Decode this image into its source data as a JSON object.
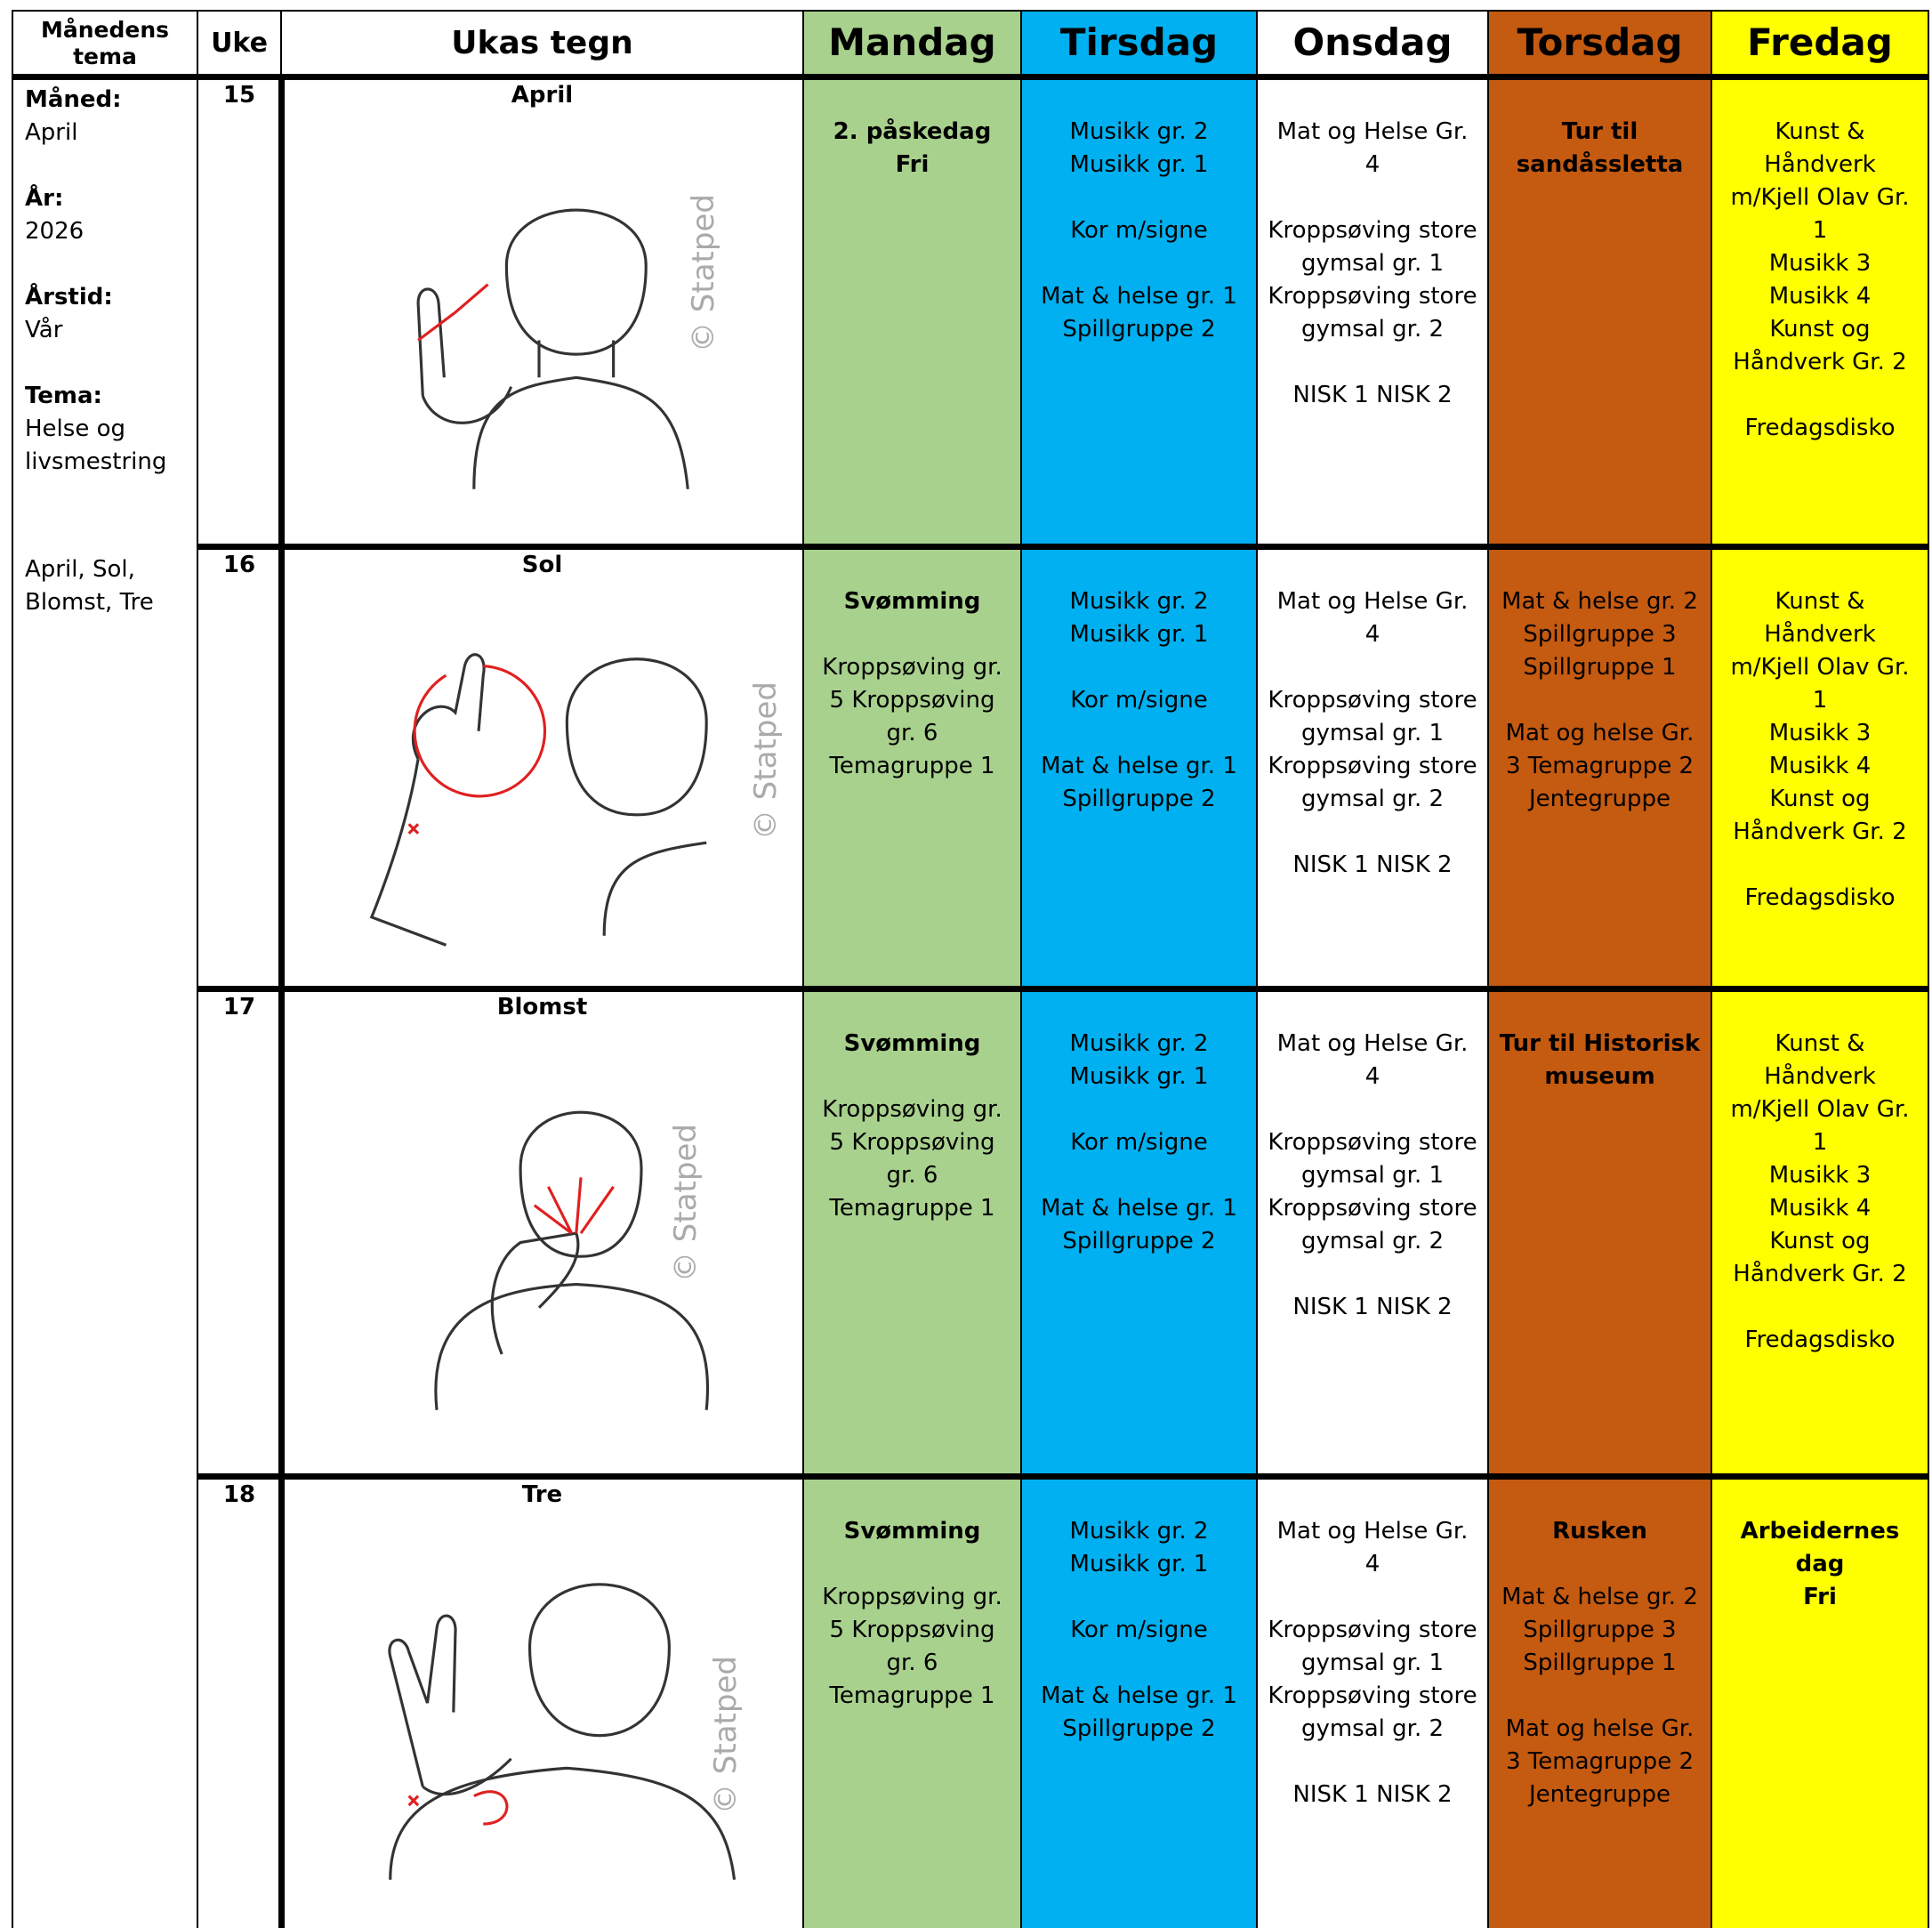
{
  "header": {
    "columns": [
      "Månedens tema",
      "Uke",
      "Ukas tegn",
      "Mandag",
      "Tirsdag",
      "Onsdag",
      "Torsdag",
      "Fredag"
    ]
  },
  "theme": {
    "items": [
      {
        "label": "Måned:",
        "value": "April"
      },
      {
        "label": "År:",
        "value": "2026"
      },
      {
        "label": "Årstid:",
        "value": "Vår"
      },
      {
        "label": "Tema:",
        "value": "Helse og livsmestring"
      }
    ],
    "summary": "April, Sol, Blomst, Tre"
  },
  "watermark": "© Statped",
  "weeks": [
    {
      "week": "15",
      "sign": "April",
      "days": [
        [
          {
            "bold": true,
            "lines": [
              "2. påskedag",
              "Fri"
            ]
          }
        ],
        [
          {
            "lines": [
              "Musikk gr. 2",
              "Musikk gr. 1"
            ]
          },
          {
            "lines": [
              "Kor m/signe"
            ]
          },
          {
            "lines": [
              "Mat & helse gr. 1",
              "Spillgruppe 2"
            ]
          }
        ],
        [
          {
            "lines": [
              "Mat og Helse Gr. 4"
            ]
          },
          {
            "lines": [
              "Kroppsøving store gymsal gr. 1",
              "Kroppsøving store gymsal gr. 2"
            ]
          },
          {
            "lines": [
              "NISK 1 NISK 2"
            ]
          }
        ],
        [
          {
            "bold": true,
            "lines": [
              "Tur til sandåssletta"
            ]
          }
        ],
        [
          {
            "lines": [
              "Kunst & Håndverk m/Kjell Olav Gr. 1",
              "Musikk 3",
              "Musikk 4",
              "Kunst og Håndverk Gr. 2"
            ]
          },
          {
            "lines": [
              "Fredagsdisko"
            ]
          }
        ]
      ]
    },
    {
      "week": "16",
      "sign": "Sol",
      "days": [
        [
          {
            "bold": true,
            "lines": [
              "Svømming"
            ]
          },
          {
            "lines": [
              "Kroppsøving gr. 5 Kroppsøving gr. 6",
              "Temagruppe 1"
            ]
          }
        ],
        [
          {
            "lines": [
              "Musikk gr. 2",
              "Musikk gr. 1"
            ]
          },
          {
            "lines": [
              "Kor m/signe"
            ]
          },
          {
            "lines": [
              "Mat & helse gr. 1",
              "Spillgruppe 2"
            ]
          }
        ],
        [
          {
            "lines": [
              "Mat og Helse Gr. 4"
            ]
          },
          {
            "lines": [
              "Kroppsøving store gymsal gr. 1",
              "Kroppsøving store gymsal gr. 2"
            ]
          },
          {
            "lines": [
              "NISK 1 NISK 2"
            ]
          }
        ],
        [
          {
            "lines": [
              "Mat & helse gr. 2",
              "Spillgruppe 3",
              "Spillgruppe 1"
            ]
          },
          {
            "lines": [
              "Mat og helse Gr. 3 Temagruppe 2",
              "Jentegruppe"
            ]
          }
        ],
        [
          {
            "lines": [
              "Kunst & Håndverk m/Kjell Olav Gr. 1",
              "Musikk 3",
              "Musikk 4",
              "Kunst og Håndverk Gr. 2"
            ]
          },
          {
            "lines": [
              "Fredagsdisko"
            ]
          }
        ]
      ]
    },
    {
      "week": "17",
      "sign": "Blomst",
      "days": [
        [
          {
            "bold": true,
            "lines": [
              "Svømming"
            ]
          },
          {
            "lines": [
              "Kroppsøving gr. 5 Kroppsøving gr. 6",
              "Temagruppe 1"
            ]
          }
        ],
        [
          {
            "lines": [
              "Musikk gr. 2",
              "Musikk gr. 1"
            ]
          },
          {
            "lines": [
              "Kor m/signe"
            ]
          },
          {
            "lines": [
              "Mat & helse gr. 1",
              "Spillgruppe 2"
            ]
          }
        ],
        [
          {
            "lines": [
              "Mat og Helse Gr. 4"
            ]
          },
          {
            "lines": [
              "Kroppsøving store gymsal gr. 1",
              "Kroppsøving store gymsal gr. 2"
            ]
          },
          {
            "lines": [
              "NISK 1 NISK 2"
            ]
          }
        ],
        [
          {
            "bold": true,
            "lines": [
              "Tur til Historisk museum"
            ]
          }
        ],
        [
          {
            "lines": [
              "Kunst & Håndverk m/Kjell Olav Gr. 1",
              "Musikk 3",
              "Musikk 4",
              "Kunst og Håndverk Gr. 2"
            ]
          },
          {
            "lines": [
              "Fredagsdisko"
            ]
          }
        ]
      ]
    },
    {
      "week": "18",
      "sign": "Tre",
      "days": [
        [
          {
            "bold": true,
            "lines": [
              "Svømming"
            ]
          },
          {
            "lines": [
              "Kroppsøving gr. 5 Kroppsøving gr. 6",
              "Temagruppe 1"
            ]
          }
        ],
        [
          {
            "lines": [
              "Musikk gr. 2",
              "Musikk gr. 1"
            ]
          },
          {
            "lines": [
              "Kor m/signe"
            ]
          },
          {
            "lines": [
              "Mat & helse gr. 1",
              "Spillgruppe 2"
            ]
          }
        ],
        [
          {
            "lines": [
              "Mat og Helse Gr. 4"
            ]
          },
          {
            "lines": [
              "Kroppsøving store gymsal gr. 1",
              "Kroppsøving store gymsal gr. 2"
            ]
          },
          {
            "lines": [
              "NISK 1 NISK 2"
            ]
          }
        ],
        [
          {
            "bold": true,
            "lines": [
              "Rusken"
            ]
          },
          {
            "lines": [
              "Mat & helse gr. 2",
              "Spillgruppe 3",
              "Spillgruppe 1"
            ]
          },
          {
            "lines": [
              "Mat og helse Gr. 3 Temagruppe 2",
              "Jentegruppe"
            ]
          }
        ],
        [
          {
            "bold": true,
            "lines": [
              "Arbeidernes dag",
              "Fri"
            ]
          }
        ]
      ]
    }
  ]
}
